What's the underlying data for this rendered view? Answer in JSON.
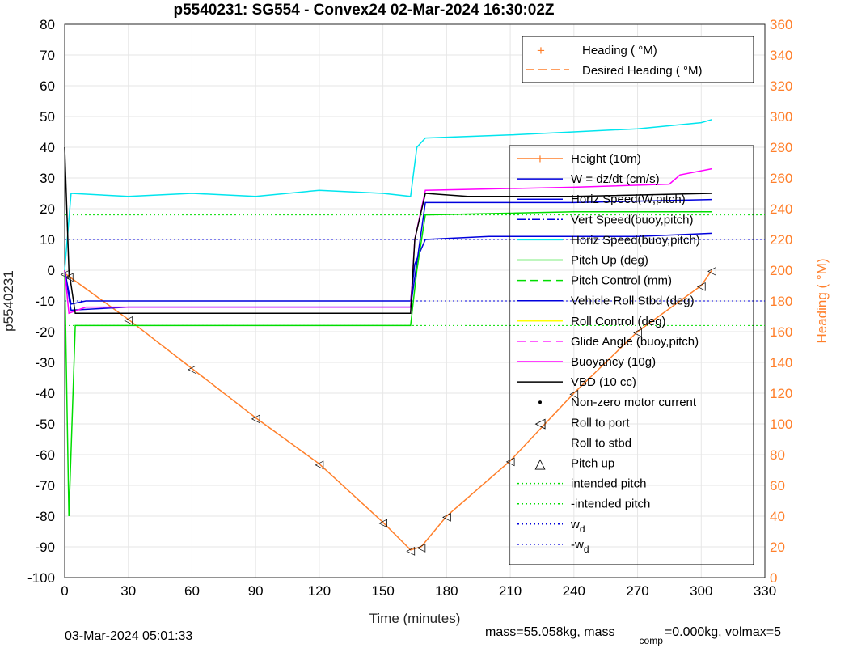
{
  "chart_data": {
    "type": "line",
    "title": "p5540231: SG554 - Convex24 02-Mar-2024 16:30:02Z",
    "xlabel": "Time (minutes)",
    "ylabel": "p5540231",
    "ylabel_right": "Heading (  °M)",
    "xlim": [
      0,
      330
    ],
    "ylim": [
      -100,
      80
    ],
    "ylim_right": [
      0,
      360
    ],
    "x_ticks": [
      "0",
      "30",
      "60",
      "90",
      "120",
      "150",
      "180",
      "210",
      "240",
      "270",
      "300",
      "330"
    ],
    "y_ticks": [
      "80",
      "70",
      "60",
      "50",
      "40",
      "30",
      "20",
      "10",
      "0",
      "-10",
      "-20",
      "-30",
      "-40",
      "-50",
      "-60",
      "-70",
      "-80",
      "-90",
      "-100"
    ],
    "y_right_ticks": [
      "360",
      "340",
      "320",
      "300",
      "280",
      "260",
      "240",
      "220",
      "200",
      "180",
      "160",
      "140",
      "120",
      "100",
      "80",
      "60",
      "40",
      "20",
      "0"
    ],
    "grid": true,
    "legend_heading": [
      {
        "label": "Heading (  °M)",
        "color": "#ff7f2a",
        "style": "plus"
      },
      {
        "label": "Desired Heading (  °M)",
        "color": "#ff7f2a",
        "style": "dash"
      }
    ],
    "legend_main": [
      {
        "label": "Height (10m)",
        "color": "#ff7f2a",
        "style": "plus-line"
      },
      {
        "label": "W = dz/dt (cm/s)",
        "color": "#0000dd",
        "style": "solid"
      },
      {
        "label": "Horiz Speed(W,pitch)",
        "color": "#0000dd",
        "style": "solid"
      },
      {
        "label": "Vert Speed(buoy,pitch)",
        "color": "#0000dd",
        "style": "dashdot"
      },
      {
        "label": "Horiz Speed(buoy,pitch)",
        "color": "#00e5ee",
        "style": "solid"
      },
      {
        "label": "Pitch Up (deg)",
        "color": "#00dd00",
        "style": "solid"
      },
      {
        "label": "Pitch Control (mm)",
        "color": "#00dd00",
        "style": "dash"
      },
      {
        "label": "Vehicle Roll Stbd (deg)",
        "color": "#0000dd",
        "style": "solid"
      },
      {
        "label": "Roll Control (deg)",
        "color": "#ffff00",
        "style": "solid"
      },
      {
        "label": "Glide Angle (buoy,pitch)",
        "color": "#ff00ff",
        "style": "dash"
      },
      {
        "label": "Buoyancy (10g)",
        "color": "#ff00ff",
        "style": "solid"
      },
      {
        "label": "VBD (10 cc)",
        "color": "#000000",
        "style": "solid"
      },
      {
        "label": "Non-zero motor current",
        "color": "#000000",
        "style": "dot"
      },
      {
        "label": "Roll to port",
        "color": "#000000",
        "style": "tri-left"
      },
      {
        "label": "Roll to stbd",
        "color": "#000000",
        "style": "tri-right"
      },
      {
        "label": "Pitch up",
        "color": "#000000",
        "style": "tri-up"
      },
      {
        "label": "intended pitch",
        "color": "#00dd00",
        "style": "dotted"
      },
      {
        "label": "-intended pitch",
        "color": "#00dd00",
        "style": "dotted"
      },
      {
        "label": "w",
        "sub": "d",
        "color": "#0000dd",
        "style": "dotted"
      },
      {
        "label": "-w",
        "sub": "d",
        "color": "#0000dd",
        "style": "dotted"
      }
    ],
    "series": [
      {
        "name": "Height (10m)",
        "color": "#ff7f2a",
        "x": [
          0,
          2,
          30,
          60,
          90,
          120,
          150,
          163,
          168,
          180,
          210,
          240,
          270,
          300,
          305
        ],
        "y": [
          -1,
          -2,
          -16,
          -32,
          -48,
          -63,
          -82,
          -91,
          -90,
          -80,
          -62,
          -40,
          -20,
          -5,
          0
        ]
      },
      {
        "name": "W = dz/dt (cm/s)",
        "color": "#0000dd",
        "x": [
          0,
          3,
          10,
          60,
          120,
          163,
          165,
          170,
          200,
          240,
          270,
          305
        ],
        "y": [
          0,
          -11,
          -10,
          -10,
          -10,
          -10,
          2,
          10,
          11,
          11,
          11,
          12
        ]
      },
      {
        "name": "Horiz Speed(W,pitch)",
        "color": "#0000dd",
        "x": [
          0,
          3,
          30,
          120,
          163,
          170,
          240,
          305
        ],
        "y": [
          0,
          -13,
          -12,
          -12,
          -12,
          22,
          22,
          23
        ]
      },
      {
        "name": "Horiz Speed(buoy,pitch)",
        "color": "#00e5ee",
        "x": [
          0,
          3,
          30,
          60,
          90,
          120,
          150,
          163,
          166,
          170,
          210,
          240,
          270,
          300,
          305
        ],
        "y": [
          0,
          25,
          24,
          25,
          24,
          26,
          25,
          24,
          40,
          43,
          44,
          45,
          46,
          48,
          49
        ]
      },
      {
        "name": "Pitch Up (deg)",
        "color": "#00dd00",
        "x": [
          0,
          2,
          5,
          60,
          120,
          163,
          166,
          170,
          240,
          305
        ],
        "y": [
          0,
          -80,
          -18,
          -18,
          -18,
          -18,
          0,
          18,
          19,
          19
        ]
      },
      {
        "name": "Buoyancy (10g)",
        "color": "#ff00ff",
        "x": [
          0,
          2,
          10,
          163,
          165,
          170,
          240,
          285,
          290,
          305
        ],
        "y": [
          0,
          -14,
          -12,
          -12,
          10,
          26,
          27,
          28,
          31,
          33
        ]
      },
      {
        "name": "VBD (10 cc)",
        "color": "#000000",
        "x": [
          0,
          2,
          5,
          163,
          165,
          170,
          190,
          240,
          305
        ],
        "y": [
          40,
          0,
          -14,
          -14,
          10,
          25,
          24,
          24,
          25
        ]
      }
    ],
    "reference_lines": {
      "intended_pitch": [
        18,
        -18
      ],
      "w_d": [
        10,
        -10
      ]
    }
  },
  "footer": {
    "left": "03-Mar-2024 05:01:33",
    "right_a": "mass=55.058kg, mass",
    "right_sub": "comp",
    "right_b": "=0.000kg, volmax=5"
  }
}
